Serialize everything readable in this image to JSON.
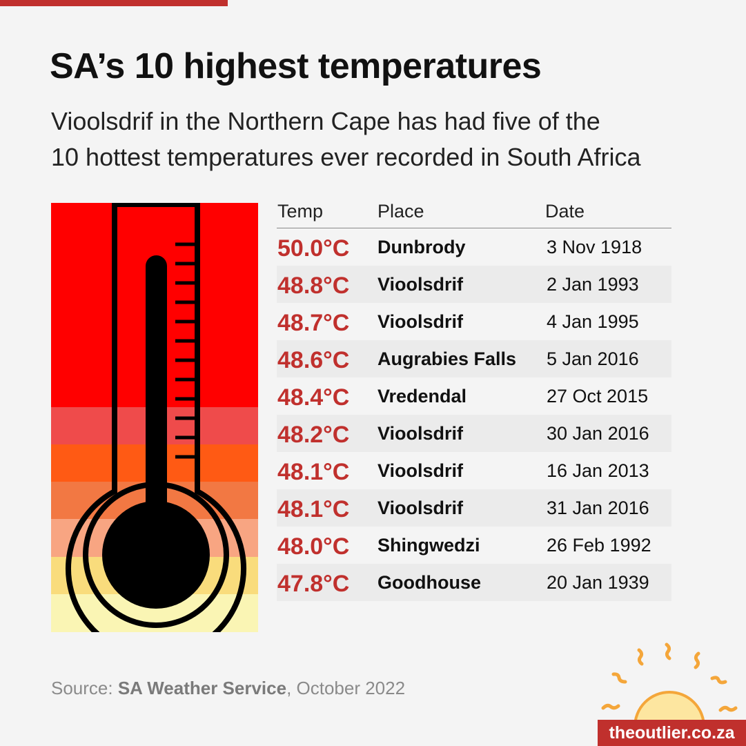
{
  "header": {
    "title": "SA’s 10 highest temperatures",
    "subtitle_line1": "Vioolsdrif in the Northern Cape has had five of the",
    "subtitle_line2": "10 hottest temperatures ever recorded in South Africa"
  },
  "colors": {
    "accent": "#c0302d",
    "thermo_bands": [
      "#ff0000",
      "#ef4b4b",
      "#ff5a14",
      "#f27843",
      "#f8a582",
      "#f9dc7c",
      "#faf5b4"
    ]
  },
  "chart_data": {
    "type": "table",
    "columns": [
      "Temp",
      "Place",
      "Date"
    ],
    "rows": [
      {
        "temp": "50.0°C",
        "place": "Dunbrody",
        "date": "3 Nov 1918"
      },
      {
        "temp": "48.8°C",
        "place": "Vioolsdrif",
        "date": "2 Jan 1993"
      },
      {
        "temp": "48.7°C",
        "place": "Vioolsdrif",
        "date": "4 Jan 1995"
      },
      {
        "temp": "48.6°C",
        "place": "Augrabies Falls",
        "date": "5 Jan 2016"
      },
      {
        "temp": "48.4°C",
        "place": "Vredendal",
        "date": "27 Oct 2015"
      },
      {
        "temp": "48.2°C",
        "place": "Vioolsdrif",
        "date": "30 Jan 2016"
      },
      {
        "temp": "48.1°C",
        "place": "Vioolsdrif",
        "date": "16 Jan 2013"
      },
      {
        "temp": "48.1°C",
        "place": "Vioolsdrif",
        "date": "31 Jan 2016"
      },
      {
        "temp": "48.0°C",
        "place": "Shingwedzi",
        "date": "26 Feb 1992"
      },
      {
        "temp": "47.8°C",
        "place": "Goodhouse",
        "date": "20 Jan 1939"
      }
    ]
  },
  "footer": {
    "source_prefix": "Source: ",
    "source_name": "SA Weather Service",
    "source_suffix": ", October 2022",
    "brand": "theoutlier.co.za"
  },
  "icons": [
    "thermometer-icon",
    "sun-icon"
  ]
}
